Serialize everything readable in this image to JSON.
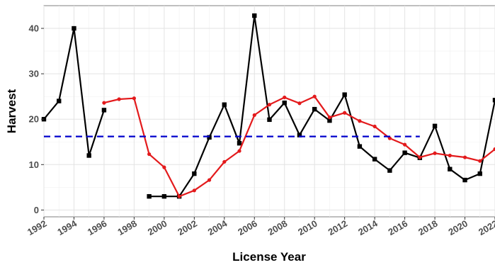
{
  "chart_data": {
    "type": "line",
    "title": "",
    "xlabel": "License Year",
    "ylabel": "Harvest",
    "xlim": [
      1992,
      2022
    ],
    "ylim": [
      -1.5,
      45
    ],
    "x_ticks": [
      1992,
      1994,
      1996,
      1998,
      2000,
      2002,
      2004,
      2006,
      2008,
      2010,
      2012,
      2014,
      2016,
      2018,
      2020,
      2022
    ],
    "y_ticks": [
      0,
      10,
      20,
      30,
      40
    ],
    "grid": true,
    "legend": "none",
    "series": [
      {
        "style": "black-line-square-markers",
        "color": "#000000",
        "segments": [
          [
            [
              1992,
              20
            ],
            [
              1993,
              24
            ],
            [
              1994,
              40
            ],
            [
              1995,
              12
            ],
            [
              1996,
              22
            ]
          ],
          [
            [
              1999,
              3
            ],
            [
              2000,
              3
            ],
            [
              2001,
              3
            ],
            [
              2002,
              8
            ],
            [
              2003,
              16
            ],
            [
              2004,
              23.2
            ],
            [
              2005,
              14.7
            ],
            [
              2006,
              42.8
            ],
            [
              2007,
              19.9
            ],
            [
              2008,
              23.6
            ],
            [
              2009,
              16.5
            ],
            [
              2010,
              22.2
            ],
            [
              2011,
              19.7
            ],
            [
              2012,
              25.4
            ],
            [
              2013,
              14
            ],
            [
              2014,
              11.2
            ],
            [
              2015,
              8.7
            ],
            [
              2016,
              12.6
            ],
            [
              2017,
              11.5
            ],
            [
              2018,
              18.5
            ],
            [
              2019,
              9
            ],
            [
              2020,
              6.6
            ],
            [
              2021,
              8
            ],
            [
              2022,
              24.2
            ]
          ]
        ]
      },
      {
        "style": "red-line-round-markers",
        "color": "#e31a1c",
        "segments": [
          [
            [
              1996,
              23.6
            ],
            [
              1997,
              24.4
            ],
            [
              1998,
              24.6
            ],
            [
              1999,
              12.3
            ],
            [
              2000,
              9.4
            ],
            [
              2001,
              3
            ],
            [
              2002,
              4.3
            ],
            [
              2003,
              6.6
            ],
            [
              2004,
              10.6
            ],
            [
              2005,
              13
            ],
            [
              2006,
              20.9
            ],
            [
              2007,
              23.2
            ],
            [
              2008,
              24.8
            ],
            [
              2009,
              23.5
            ],
            [
              2010,
              25
            ],
            [
              2011,
              20.4
            ],
            [
              2012,
              21.4
            ],
            [
              2013,
              19.6
            ],
            [
              2014,
              18.4
            ],
            [
              2015,
              15.8
            ],
            [
              2016,
              14.4
            ],
            [
              2017,
              11.6
            ],
            [
              2018,
              12.5
            ],
            [
              2019,
              12
            ],
            [
              2020,
              11.6
            ],
            [
              2021,
              10.8
            ],
            [
              2022,
              13.4
            ]
          ]
        ]
      },
      {
        "style": "blue-dashed-reference",
        "color": "#0000cc",
        "segments": [
          [
            [
              1992,
              16.2
            ],
            [
              2017,
              16.2
            ]
          ]
        ]
      }
    ]
  }
}
